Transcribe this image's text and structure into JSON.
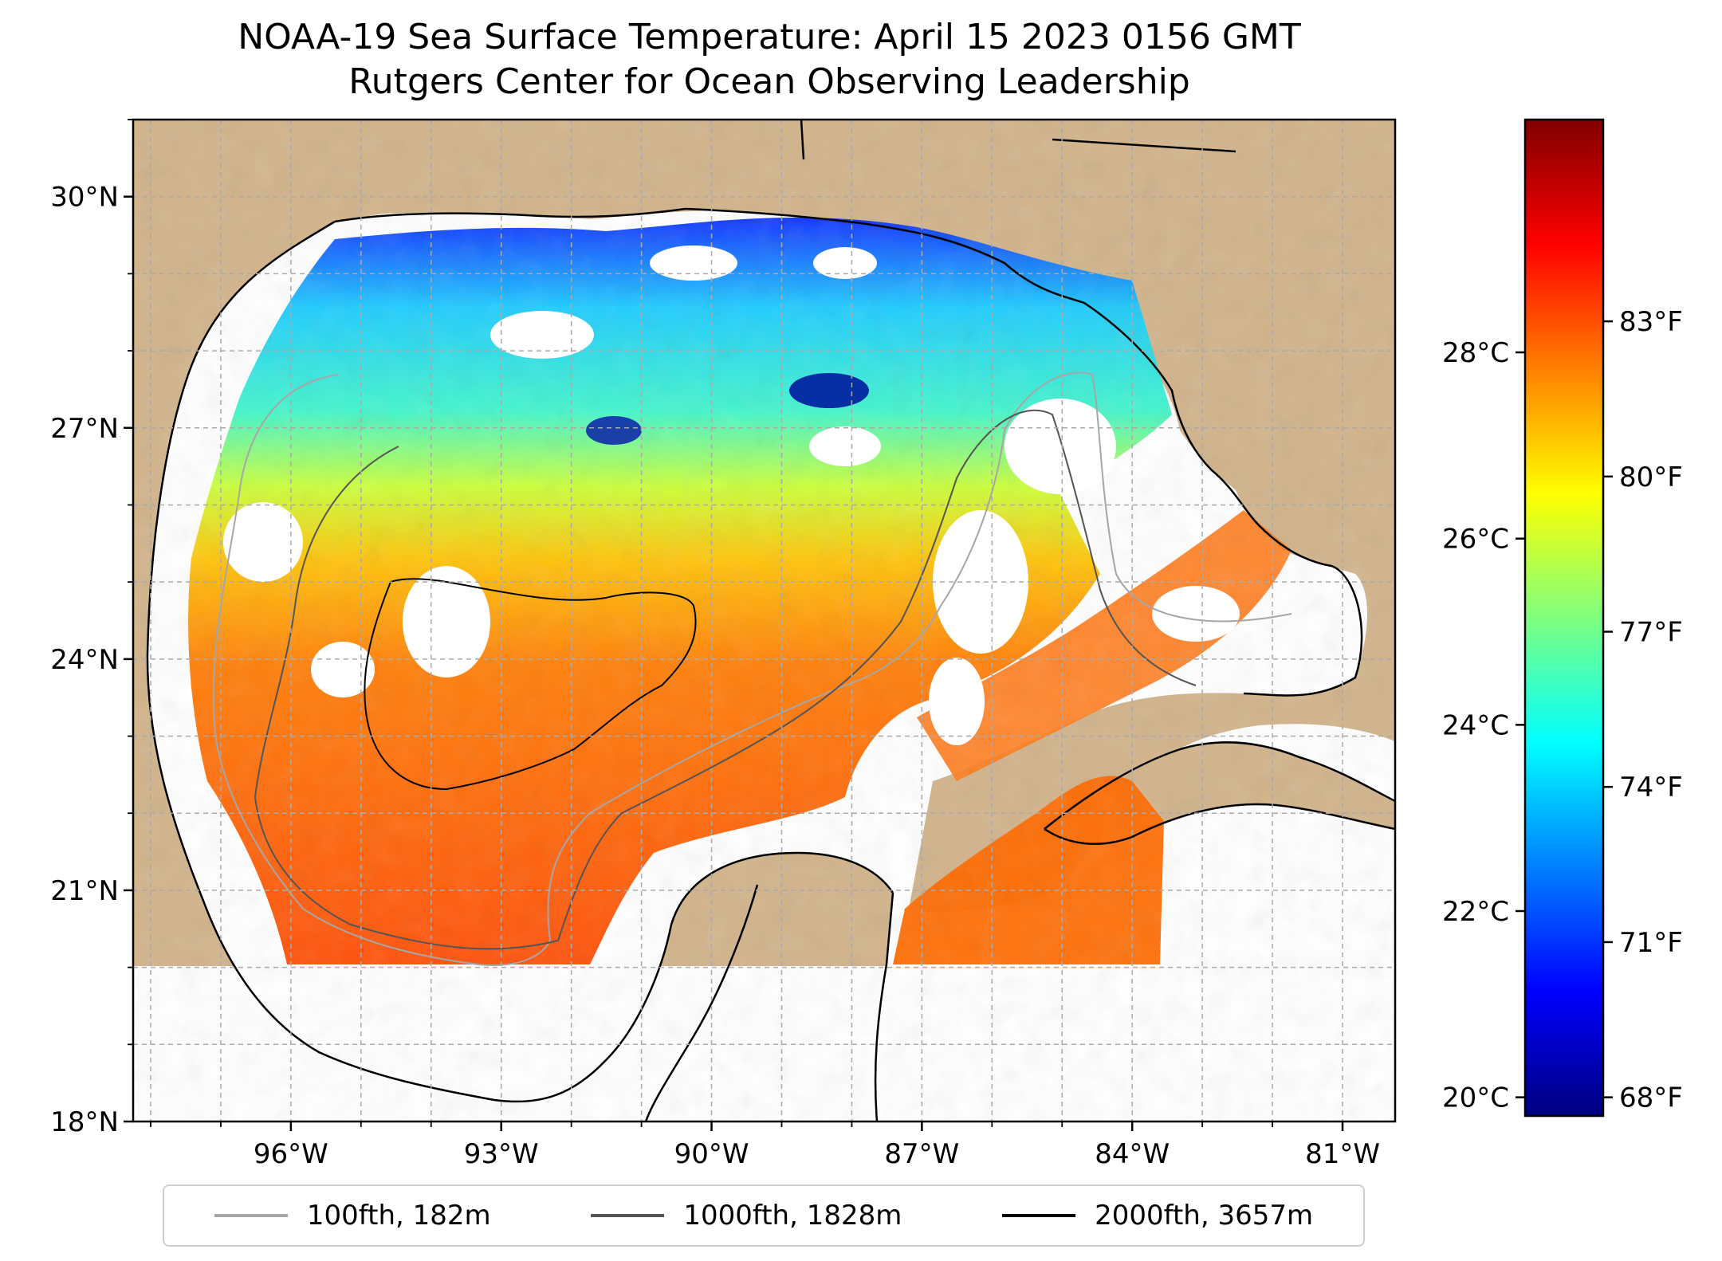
{
  "title": "NOAA-19 Sea Surface Temperature: April 15 2023 0156 GMT",
  "subtitle": "Rutgers Center for Ocean Observing Leadership",
  "map": {
    "lon_range": [
      -98.25,
      -80.25
    ],
    "lat_range": [
      18.0,
      31.0
    ],
    "lat_ticks": [
      {
        "value": 30,
        "label": "30°N"
      },
      {
        "value": 27,
        "label": "27°N"
      },
      {
        "value": 24,
        "label": "24°N"
      },
      {
        "value": 21,
        "label": "21°N"
      },
      {
        "value": 18,
        "label": "18°N"
      }
    ],
    "lon_ticks": [
      {
        "value": -96,
        "label": "96°W"
      },
      {
        "value": -93,
        "label": "93°W"
      },
      {
        "value": -90,
        "label": "90°W"
      },
      {
        "value": -87,
        "label": "87°W"
      },
      {
        "value": -84,
        "label": "84°W"
      },
      {
        "value": -81,
        "label": "81°W"
      }
    ],
    "gridlines": true,
    "colors": {
      "land": "#d2b48c",
      "no_data": "#ffffff",
      "coastline": "#000000",
      "gridline": "#aaaaaa"
    }
  },
  "colorbar": {
    "colormap": "jet",
    "celsius_range": [
      19.8,
      30.5
    ],
    "celsius_ticks": [
      {
        "value": 20,
        "label": "20°C"
      },
      {
        "value": 22,
        "label": "22°C"
      },
      {
        "value": 24,
        "label": "24°C"
      },
      {
        "value": 26,
        "label": "26°C"
      },
      {
        "value": 28,
        "label": "28°C"
      }
    ],
    "fahrenheit_ticks": [
      {
        "value": 68,
        "label": "68°F"
      },
      {
        "value": 71,
        "label": "71°F"
      },
      {
        "value": 74,
        "label": "74°F"
      },
      {
        "value": 77,
        "label": "77°F"
      },
      {
        "value": 80,
        "label": "80°F"
      },
      {
        "value": 83,
        "label": "83°F"
      }
    ]
  },
  "legend": {
    "placement": "bottom-center",
    "items": [
      {
        "label": "100fth, 182m",
        "color": "#a6a6a6"
      },
      {
        "label": "1000fth, 1828m",
        "color": "#555555"
      },
      {
        "label": "2000fth, 3657m",
        "color": "#000000"
      }
    ]
  }
}
